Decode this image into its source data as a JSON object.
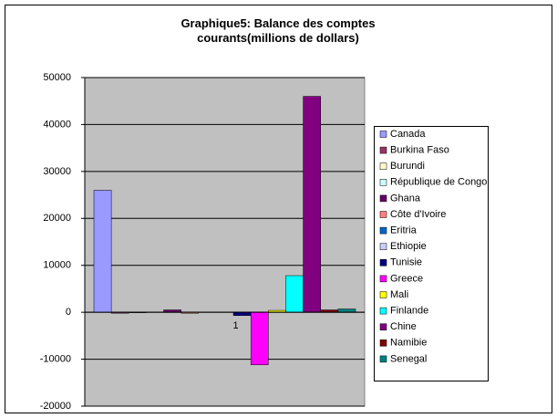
{
  "chart_data": {
    "type": "bar",
    "title": "Graphique5: Balance des comptes courants(millions de dollars)",
    "categories": [
      "1"
    ],
    "series": [
      {
        "name": "Canada",
        "color": "#9999ff",
        "values": [
          26000
        ]
      },
      {
        "name": "Burkina Faso",
        "color": "#993366",
        "values": [
          -200
        ]
      },
      {
        "name": "Burundi",
        "color": "#ffffcc",
        "values": [
          -100
        ]
      },
      {
        "name": "République de Congo",
        "color": "#ccffff",
        "values": [
          0
        ]
      },
      {
        "name": "Ghana",
        "color": "#660066",
        "values": [
          500
        ]
      },
      {
        "name": "Côte d'Ivoire",
        "color": "#ff8080",
        "values": [
          -200
        ]
      },
      {
        "name": "Eritria",
        "color": "#0066cc",
        "values": [
          0
        ]
      },
      {
        "name": "Ethiopie",
        "color": "#ccccff",
        "values": [
          0
        ]
      },
      {
        "name": "Tunisie",
        "color": "#000080",
        "values": [
          -700
        ]
      },
      {
        "name": "Greece",
        "color": "#ff00ff",
        "values": [
          -11200
        ]
      },
      {
        "name": "Mali",
        "color": "#ffff00",
        "values": [
          400
        ]
      },
      {
        "name": "Finlande",
        "color": "#00ffff",
        "values": [
          7800
        ]
      },
      {
        "name": "Chine",
        "color": "#800080",
        "values": [
          46000
        ]
      },
      {
        "name": "Namibie",
        "color": "#800000",
        "values": [
          500
        ]
      },
      {
        "name": "Senegal",
        "color": "#008080",
        "values": [
          700
        ]
      }
    ],
    "ylim": [
      -20000,
      50000
    ],
    "yticks": [
      -20000,
      -10000,
      0,
      10000,
      20000,
      30000,
      40000,
      50000
    ],
    "grid": true,
    "legend": "right"
  }
}
